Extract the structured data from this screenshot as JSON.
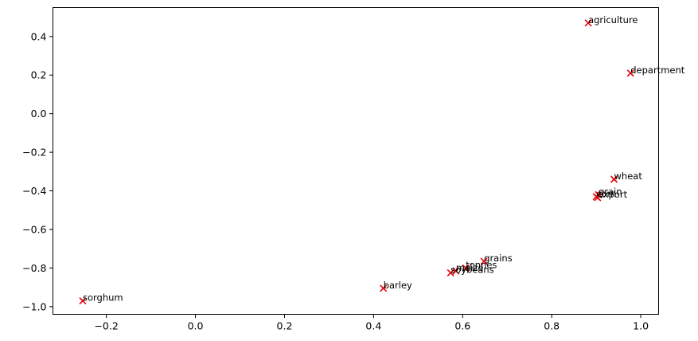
{
  "chart_data": {
    "type": "scatter",
    "title": "",
    "xlabel": "",
    "ylabel": "",
    "xlim": [
      -0.32,
      1.04
    ],
    "ylim": [
      -1.04,
      0.55
    ],
    "grid": false,
    "marker": "x",
    "marker_color": "#e8000b",
    "x_ticks": [
      -0.2,
      0.0,
      0.2,
      0.4,
      0.6,
      0.8,
      1.0
    ],
    "x_tick_labels": [
      "−0.2",
      "0.0",
      "0.2",
      "0.4",
      "0.6",
      "0.8",
      "1.0"
    ],
    "y_ticks": [
      0.4,
      0.2,
      0.0,
      -0.2,
      -0.4,
      -0.6,
      -0.8,
      -1.0
    ],
    "y_tick_labels": [
      "0.4",
      "0.2",
      "0.0",
      "−0.2",
      "−0.4",
      "−0.6",
      "−0.8",
      "−1.0"
    ],
    "points": [
      {
        "label": "agriculture",
        "x": 0.882,
        "y": 0.47
      },
      {
        "label": "department",
        "x": 0.977,
        "y": 0.21
      },
      {
        "label": "wheat",
        "x": 0.94,
        "y": -0.34
      },
      {
        "label": "grain",
        "x": 0.905,
        "y": -0.42
      },
      {
        "label": "corn",
        "x": 0.9,
        "y": -0.43
      },
      {
        "label": "export",
        "x": 0.903,
        "y": -0.435
      },
      {
        "label": "grains",
        "x": 0.648,
        "y": -0.765
      },
      {
        "label": "tonnes",
        "x": 0.607,
        "y": -0.8
      },
      {
        "label": "maize",
        "x": 0.585,
        "y": -0.815
      },
      {
        "label": "soybeans",
        "x": 0.573,
        "y": -0.825
      },
      {
        "label": "barley",
        "x": 0.422,
        "y": -0.905
      },
      {
        "label": "sorghum",
        "x": -0.253,
        "y": -0.97
      }
    ]
  }
}
